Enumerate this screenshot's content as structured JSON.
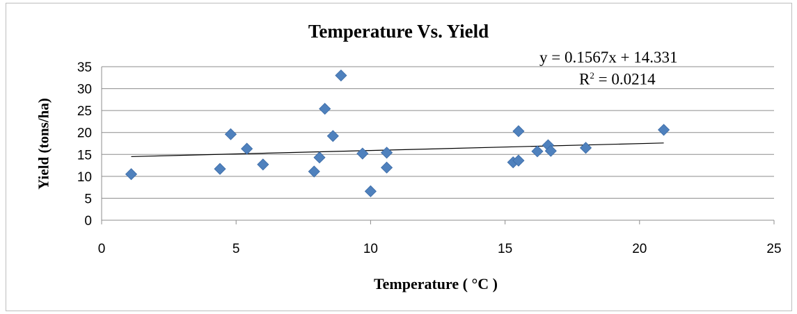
{
  "chart_data": {
    "type": "scatter",
    "title": "Temperature Vs. Yield",
    "xlabel": "Temperature ( °C )",
    "ylabel": "Yield (tons/ha)",
    "xlim": [
      0,
      25
    ],
    "ylim": [
      0,
      35
    ],
    "xticks": [
      "0",
      "5",
      "10",
      "15",
      "20",
      "25"
    ],
    "yticks": [
      "0",
      "5",
      "10",
      "15",
      "20",
      "25",
      "30",
      "35"
    ],
    "grid": "horizontal",
    "legend": "none",
    "marker_color": "#4f81bd",
    "trendline": {
      "equation": "y = 0.1567x + 14.331",
      "r2_prefix": "R",
      "r2_sup": "2",
      "r2_value": " = 0.0214",
      "slope": 0.1567,
      "intercept": 14.331,
      "x_range": [
        1.1,
        20.9
      ],
      "color": "#000000"
    },
    "points": [
      {
        "x": 1.1,
        "y": 10.5
      },
      {
        "x": 4.4,
        "y": 11.7
      },
      {
        "x": 4.8,
        "y": 19.6
      },
      {
        "x": 5.4,
        "y": 16.3
      },
      {
        "x": 6.0,
        "y": 12.7
      },
      {
        "x": 7.9,
        "y": 11.1
      },
      {
        "x": 8.1,
        "y": 14.3
      },
      {
        "x": 8.3,
        "y": 25.4
      },
      {
        "x": 8.6,
        "y": 19.2
      },
      {
        "x": 8.9,
        "y": 33.0
      },
      {
        "x": 9.7,
        "y": 15.2
      },
      {
        "x": 10.0,
        "y": 6.6
      },
      {
        "x": 10.6,
        "y": 15.4
      },
      {
        "x": 10.6,
        "y": 12.0
      },
      {
        "x": 15.3,
        "y": 13.2
      },
      {
        "x": 15.5,
        "y": 13.6
      },
      {
        "x": 15.5,
        "y": 20.3
      },
      {
        "x": 16.2,
        "y": 15.7
      },
      {
        "x": 16.6,
        "y": 17.1
      },
      {
        "x": 16.7,
        "y": 15.8
      },
      {
        "x": 18.0,
        "y": 16.5
      },
      {
        "x": 20.9,
        "y": 20.6
      }
    ]
  }
}
